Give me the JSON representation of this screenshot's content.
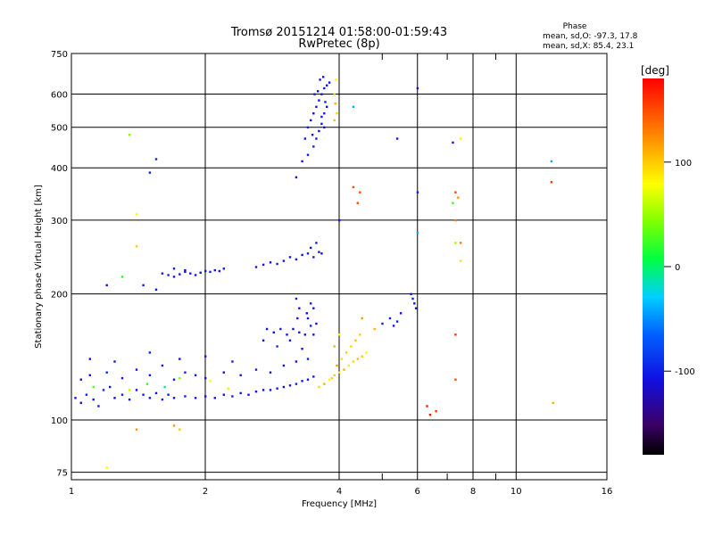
{
  "chart_data": {
    "type": "scatter",
    "title": "Tromsø 20151214 01:58:00-01:59:43",
    "subtitle": "RwPretec (8p)",
    "xlabel": "Frequency [MHz]",
    "ylabel": "Stationary phase Virtual Height [km]",
    "x_scale": "log",
    "y_scale": "log",
    "xlim": [
      1,
      16
    ],
    "ylim": [
      72,
      750
    ],
    "x_ticks": [
      1,
      2,
      4,
      6,
      8,
      10,
      16
    ],
    "x_tick_labels": [
      "1",
      "2",
      "4",
      "6",
      "8",
      "10",
      "16"
    ],
    "x_minor_ticks": [
      5,
      7,
      9
    ],
    "y_ticks": [
      75,
      100,
      200,
      300,
      400,
      500,
      600,
      750
    ],
    "y_tick_labels": [
      "75",
      "100",
      "200",
      "300",
      "400",
      "500",
      "600",
      "750"
    ],
    "grid": true,
    "legend_title": "Phase",
    "stats": [
      "mean, sd,O: -97.3, 17.8",
      "mean, sd,X: 85.4, 23.1"
    ],
    "colorbar": {
      "label": "[deg]",
      "range": [
        -180,
        180
      ],
      "ticks": [
        100,
        0,
        -100
      ],
      "tick_labels": [
        "100",
        "0",
        "-100"
      ]
    },
    "points": [
      [
        1.02,
        113,
        -105
      ],
      [
        1.05,
        110,
        -110
      ],
      [
        1.08,
        115,
        -100
      ],
      [
        1.12,
        112,
        -108
      ],
      [
        1.15,
        108,
        -102
      ],
      [
        1.18,
        118,
        -95
      ],
      [
        1.22,
        120,
        -105
      ],
      [
        1.25,
        113,
        -110
      ],
      [
        1.3,
        115,
        -100
      ],
      [
        1.35,
        112,
        -104
      ],
      [
        1.4,
        118,
        -108
      ],
      [
        1.45,
        115,
        -100
      ],
      [
        1.5,
        113,
        -106
      ],
      [
        1.55,
        116,
        -110
      ],
      [
        1.6,
        112,
        -102
      ],
      [
        1.65,
        115,
        -104
      ],
      [
        1.7,
        113,
        -110
      ],
      [
        1.8,
        114,
        -100
      ],
      [
        1.9,
        113,
        -106
      ],
      [
        2.0,
        114,
        -108
      ],
      [
        2.1,
        113,
        -104
      ],
      [
        2.2,
        115,
        -110
      ],
      [
        2.3,
        114,
        -102
      ],
      [
        2.4,
        116,
        -106
      ],
      [
        2.5,
        115,
        -108
      ],
      [
        2.6,
        117,
        -104
      ],
      [
        2.7,
        118,
        -110
      ],
      [
        2.8,
        118,
        -102
      ],
      [
        2.9,
        119,
        -106
      ],
      [
        3.0,
        120,
        -108
      ],
      [
        3.1,
        121,
        -104
      ],
      [
        3.2,
        122,
        -100
      ],
      [
        3.3,
        124,
        -106
      ],
      [
        3.4,
        125,
        -104
      ],
      [
        3.5,
        127,
        -102
      ],
      [
        1.05,
        125,
        -105
      ],
      [
        1.1,
        128,
        -110
      ],
      [
        1.2,
        130,
        -95
      ],
      [
        1.3,
        126,
        -105
      ],
      [
        1.4,
        132,
        -108
      ],
      [
        1.5,
        128,
        -100
      ],
      [
        1.6,
        135,
        -104
      ],
      [
        1.7,
        125,
        -106
      ],
      [
        1.8,
        130,
        -102
      ],
      [
        1.9,
        128,
        -108
      ],
      [
        2.0,
        126,
        -104
      ],
      [
        2.2,
        130,
        -110
      ],
      [
        2.4,
        128,
        -106
      ],
      [
        2.6,
        132,
        -100
      ],
      [
        2.8,
        130,
        -104
      ],
      [
        3.0,
        135,
        -106
      ],
      [
        3.2,
        138,
        -108
      ],
      [
        3.4,
        140,
        -100
      ],
      [
        1.12,
        120,
        30
      ],
      [
        1.35,
        118,
        60
      ],
      [
        1.48,
        122,
        20
      ],
      [
        1.62,
        120,
        -10
      ],
      [
        1.75,
        126,
        45
      ],
      [
        2.05,
        124,
        80
      ],
      [
        2.25,
        119,
        70
      ],
      [
        1.1,
        140,
        -110
      ],
      [
        1.25,
        138,
        -104
      ],
      [
        1.5,
        145,
        -100
      ],
      [
        1.75,
        140,
        -108
      ],
      [
        2.0,
        142,
        -106
      ],
      [
        2.3,
        138,
        -102
      ],
      [
        2.75,
        165,
        -105
      ],
      [
        2.85,
        162,
        -110
      ],
      [
        2.95,
        165,
        -100
      ],
      [
        3.05,
        160,
        -104
      ],
      [
        3.15,
        165,
        -108
      ],
      [
        3.25,
        162,
        -102
      ],
      [
        3.35,
        160,
        -106
      ],
      [
        3.45,
        168,
        -100
      ],
      [
        2.7,
        155,
        -105
      ],
      [
        2.9,
        150,
        -95
      ],
      [
        3.1,
        155,
        -110
      ],
      [
        3.3,
        148,
        -104
      ],
      [
        3.4,
        175,
        -106
      ],
      [
        3.45,
        190,
        -100
      ],
      [
        3.5,
        185,
        -104
      ],
      [
        3.38,
        180,
        -108
      ],
      [
        3.5,
        160,
        -102
      ],
      [
        3.55,
        170,
        -110
      ],
      [
        3.2,
        195,
        -100
      ],
      [
        3.25,
        185,
        -104
      ],
      [
        3.22,
        175,
        -106
      ],
      [
        1.6,
        224,
        -104
      ],
      [
        1.65,
        222,
        -100
      ],
      [
        1.7,
        220,
        -108
      ],
      [
        1.75,
        223,
        -104
      ],
      [
        1.8,
        226,
        -110
      ],
      [
        1.85,
        224,
        -102
      ],
      [
        1.9,
        222,
        -106
      ],
      [
        1.95,
        225,
        -108
      ],
      [
        2.0,
        227,
        -104
      ],
      [
        2.05,
        226,
        -100
      ],
      [
        2.1,
        228,
        -106
      ],
      [
        2.15,
        227,
        -108
      ],
      [
        2.2,
        230,
        -102
      ],
      [
        2.6,
        232,
        -104
      ],
      [
        2.7,
        235,
        -106
      ],
      [
        2.8,
        238,
        -108
      ],
      [
        2.9,
        236,
        -100
      ],
      [
        3.0,
        240,
        -104
      ],
      [
        3.1,
        245,
        -106
      ],
      [
        3.2,
        242,
        -102
      ],
      [
        3.3,
        248,
        -108
      ],
      [
        3.4,
        250,
        -100
      ],
      [
        3.5,
        245,
        -104
      ],
      [
        3.6,
        252,
        -106
      ],
      [
        3.65,
        250,
        -110
      ],
      [
        3.55,
        265,
        -100
      ],
      [
        3.45,
        258,
        -104
      ],
      [
        1.7,
        230,
        -108
      ],
      [
        1.8,
        228,
        -106
      ],
      [
        3.35,
        470,
        -104
      ],
      [
        3.4,
        500,
        -100
      ],
      [
        3.45,
        520,
        -106
      ],
      [
        3.5,
        540,
        -108
      ],
      [
        3.55,
        560,
        -104
      ],
      [
        3.6,
        580,
        -110
      ],
      [
        3.65,
        600,
        -102
      ],
      [
        3.7,
        620,
        -106
      ],
      [
        3.5,
        450,
        -100
      ],
      [
        3.55,
        470,
        -104
      ],
      [
        3.6,
        490,
        -108
      ],
      [
        3.65,
        510,
        -106
      ],
      [
        3.7,
        540,
        -100
      ],
      [
        3.75,
        630,
        -104
      ],
      [
        3.8,
        640,
        -108
      ],
      [
        3.62,
        650,
        -106
      ],
      [
        3.68,
        660,
        -102
      ],
      [
        3.58,
        610,
        -110
      ],
      [
        3.52,
        600,
        -104
      ],
      [
        3.72,
        575,
        -100
      ],
      [
        3.4,
        430,
        -106
      ],
      [
        3.3,
        415,
        -108
      ],
      [
        3.2,
        380,
        -104
      ],
      [
        3.65,
        530,
        -102
      ],
      [
        3.75,
        560,
        -106
      ],
      [
        3.48,
        480,
        -104
      ],
      [
        3.7,
        500,
        -108
      ],
      [
        3.8,
        125,
        80
      ],
      [
        3.9,
        128,
        100
      ],
      [
        4.0,
        130,
        90
      ],
      [
        4.1,
        132,
        110
      ],
      [
        4.2,
        135,
        85
      ],
      [
        4.3,
        138,
        95
      ],
      [
        4.4,
        140,
        105
      ],
      [
        4.5,
        142,
        100
      ],
      [
        4.6,
        145,
        80
      ],
      [
        3.7,
        122,
        110
      ],
      [
        3.6,
        120,
        95
      ],
      [
        3.85,
        126,
        100
      ],
      [
        3.95,
        135,
        120
      ],
      [
        4.05,
        140,
        90
      ],
      [
        4.15,
        145,
        100
      ],
      [
        4.25,
        150,
        95
      ],
      [
        4.35,
        155,
        105
      ],
      [
        4.45,
        160,
        100
      ],
      [
        3.9,
        150,
        110
      ],
      [
        4.0,
        160,
        80
      ],
      [
        3.9,
        600,
        100
      ],
      [
        3.92,
        570,
        110
      ],
      [
        3.95,
        540,
        95
      ],
      [
        3.9,
        520,
        105
      ],
      [
        3.93,
        650,
        80
      ],
      [
        5.8,
        200,
        -104
      ],
      [
        5.85,
        195,
        -100
      ],
      [
        5.9,
        190,
        -106
      ],
      [
        5.95,
        185,
        -108
      ],
      [
        5.0,
        170,
        -100
      ],
      [
        5.2,
        175,
        -104
      ],
      [
        5.5,
        180,
        -108
      ],
      [
        5.4,
        172,
        -102
      ],
      [
        5.3,
        168,
        -106
      ],
      [
        4.5,
        175,
        120
      ],
      [
        4.8,
        165,
        110
      ],
      [
        6.0,
        620,
        -110
      ],
      [
        5.4,
        470,
        -104
      ],
      [
        6.0,
        350,
        -100
      ],
      [
        6.0,
        280,
        -40
      ],
      [
        7.2,
        460,
        -102
      ],
      [
        7.5,
        470,
        80
      ],
      [
        7.3,
        350,
        155
      ],
      [
        7.4,
        340,
        120
      ],
      [
        7.2,
        330,
        20
      ],
      [
        7.3,
        300,
        130
      ],
      [
        7.3,
        265,
        50
      ],
      [
        7.5,
        265,
        130
      ],
      [
        7.5,
        240,
        90
      ],
      [
        12.0,
        415,
        -40
      ],
      [
        12.0,
        370,
        160
      ],
      [
        12.1,
        110,
        110
      ],
      [
        7.3,
        160,
        160
      ],
      [
        7.3,
        125,
        150
      ],
      [
        6.4,
        103,
        170
      ],
      [
        6.6,
        105,
        160
      ],
      [
        6.3,
        108,
        170
      ],
      [
        4.3,
        360,
        150
      ],
      [
        4.45,
        350,
        150
      ],
      [
        4.4,
        330,
        150
      ],
      [
        4.0,
        300,
        -104
      ],
      [
        4.3,
        560,
        -40
      ],
      [
        1.35,
        480,
        40
      ],
      [
        1.55,
        420,
        -100
      ],
      [
        1.5,
        390,
        -100
      ],
      [
        1.4,
        310,
        80
      ],
      [
        1.4,
        260,
        100
      ],
      [
        1.3,
        220,
        20
      ],
      [
        1.45,
        210,
        -100
      ],
      [
        1.2,
        210,
        -110
      ],
      [
        1.55,
        205,
        -104
      ],
      [
        1.4,
        95,
        120
      ],
      [
        1.2,
        77,
        80
      ],
      [
        1.7,
        97,
        120
      ],
      [
        1.75,
        95,
        100
      ]
    ]
  }
}
